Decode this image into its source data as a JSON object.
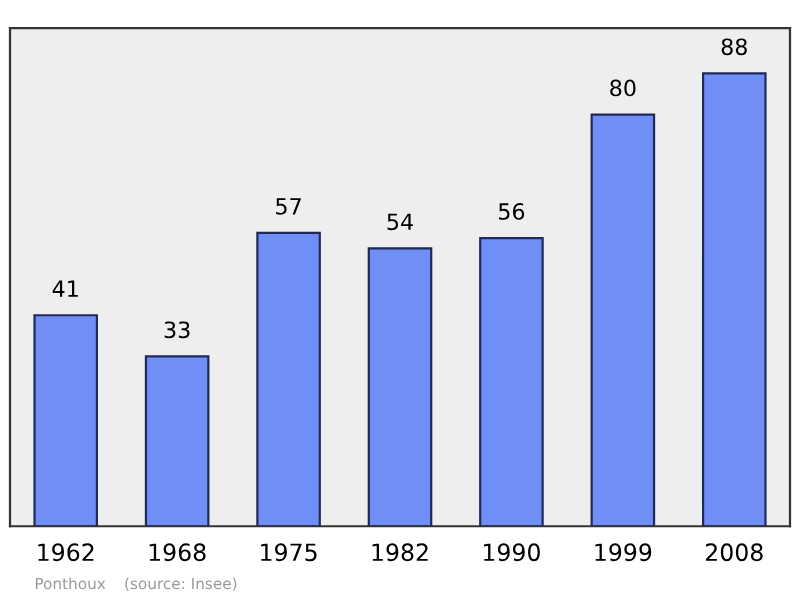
{
  "chart_data": {
    "type": "bar",
    "categories": [
      "1962",
      "1968",
      "1975",
      "1982",
      "1990",
      "1999",
      "2008"
    ],
    "values": [
      41,
      33,
      57,
      54,
      56,
      80,
      88
    ],
    "color": "#6f8ff7",
    "data_labels": true,
    "grid": false,
    "legend": false,
    "annotations": [
      "Ponthoux",
      "(source: Insee)"
    ]
  }
}
